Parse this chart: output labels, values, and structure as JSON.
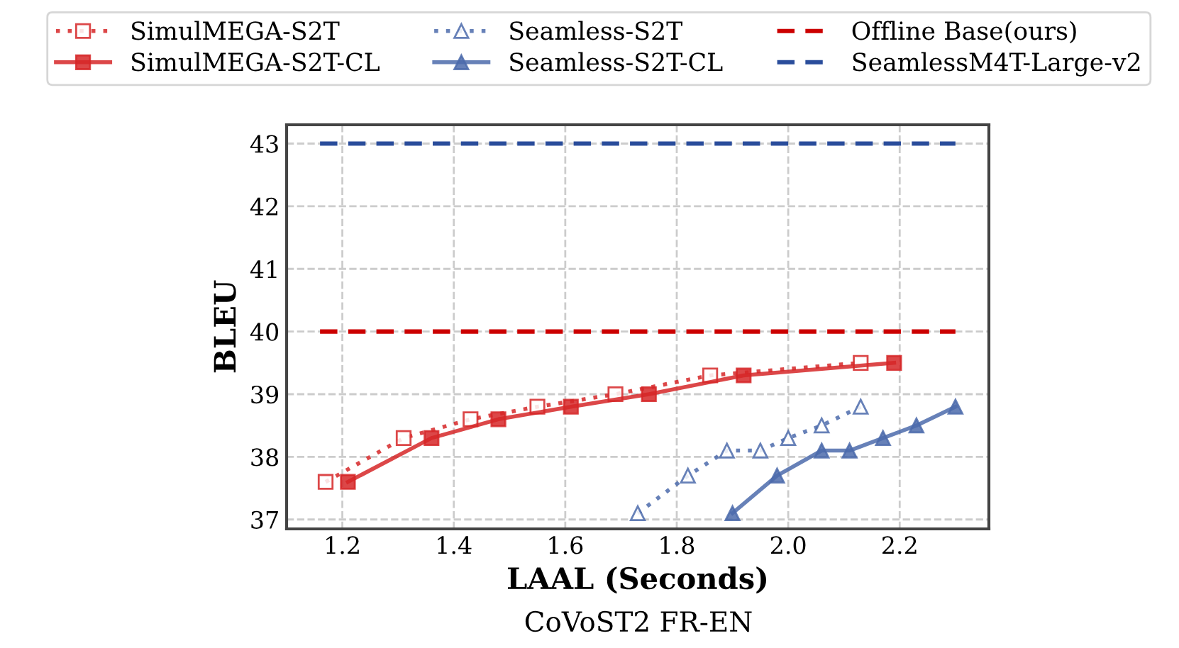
{
  "chart_data": {
    "type": "line",
    "xlabel": "LAAL (Seconds)",
    "ylabel": "BLEU",
    "annotations": [
      "CoVoST2 FR-EN"
    ],
    "xlim": [
      1.1,
      2.36
    ],
    "xticks": [
      1.2,
      1.4,
      1.6,
      1.8,
      {
        "value": 2.0,
        "label": "2.0"
      },
      2.2
    ],
    "ylim": [
      36.85,
      43.3
    ],
    "yticks": [
      37,
      38,
      39,
      40,
      41,
      42,
      43
    ],
    "grid": true,
    "legend": "top",
    "series": [
      {
        "name": "SimulMEGA-S2T",
        "color": "#d62728",
        "marker": "square",
        "line_style": "dotted",
        "x": [
          1.17,
          1.31,
          1.43,
          1.55,
          1.69,
          1.86,
          2.13
        ],
        "values": [
          37.6,
          38.3,
          38.6,
          38.8,
          39.0,
          39.3,
          39.5
        ]
      },
      {
        "name": "SimulMEGA-S2T-CL",
        "color": "#d62728",
        "marker": "square",
        "line_style": "solid",
        "x": [
          1.21,
          1.36,
          1.48,
          1.61,
          1.75,
          1.92,
          2.19
        ],
        "values": [
          37.6,
          38.3,
          38.6,
          38.8,
          39.0,
          39.3,
          39.5
        ]
      },
      {
        "name": "Seamless-S2T",
        "color": "#4c6bab",
        "marker": "triangle",
        "line_style": "dotted",
        "x": [
          1.73,
          1.82,
          1.89,
          1.95,
          2.0,
          2.06,
          2.13
        ],
        "values": [
          37.1,
          37.7,
          38.1,
          38.1,
          38.3,
          38.5,
          38.8
        ]
      },
      {
        "name": "Seamless-S2T-CL",
        "color": "#4c6bab",
        "marker": "triangle",
        "line_style": "solid",
        "x": [
          1.9,
          1.98,
          2.06,
          2.11,
          2.17,
          2.23,
          2.3
        ],
        "values": [
          37.1,
          37.7,
          38.1,
          38.1,
          38.3,
          38.5,
          38.8
        ]
      },
      {
        "name": "Offline Base(ours)",
        "color": "#cc0000",
        "marker": "none",
        "line_style": "dashed",
        "x": [
          1.16,
          2.3
        ],
        "values": [
          40,
          40
        ]
      },
      {
        "name": "SeamlessM4T-Large-v2",
        "color": "#2a4d9b",
        "marker": "none",
        "line_style": "dashed",
        "x": [
          1.16,
          2.3
        ],
        "values": [
          43,
          43
        ]
      }
    ]
  }
}
